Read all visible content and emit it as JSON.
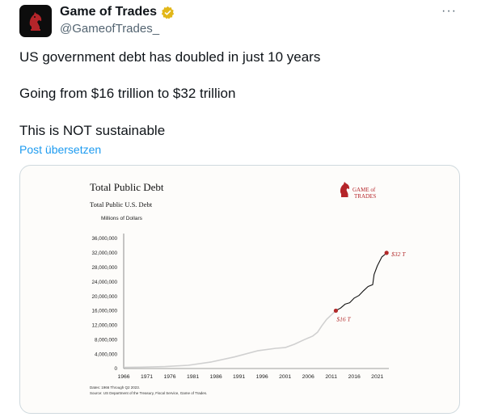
{
  "tweet": {
    "display_name": "Game of Trades",
    "handle": "@GameofTrades_",
    "lines": [
      "US government debt has doubled in just 10 years",
      "Going from $16 trillion to $32 trillion",
      "This is NOT sustainable"
    ],
    "translate_label": "Post übersetzen",
    "more_label": "···",
    "colors": {
      "accent": "#1d9bf0",
      "verified": "#e2b719",
      "text": "#0f1419",
      "muted": "#536471"
    },
    "icons": [
      "avatar-logo",
      "verified-badge-icon",
      "more-options-icon"
    ]
  },
  "chart": {
    "title": "Total Public Debt",
    "subtitle": "Total Public U.S. Debt",
    "ylabel": "Millions of Dollars",
    "logo_text": {
      "line1": "GAME of",
      "line2": "TRADES"
    },
    "footnote1": "Dates: 1966 Through Q2 2023.",
    "footnote2": "Source: US Department of the Treasury, Fiscal Service, Game of Trades.",
    "annotations": [
      {
        "label": "$16 T",
        "x": 2012,
        "y": 16000000
      },
      {
        "label": "$32 T",
        "x": 2023,
        "y": 32000000
      }
    ]
  },
  "chart_data": {
    "type": "line",
    "title": "Total Public Debt",
    "subtitle": "Total Public U.S. Debt",
    "xlabel": "",
    "ylabel": "Millions of Dollars",
    "xlim": [
      1966,
      2023.5
    ],
    "ylim": [
      0,
      36000000
    ],
    "x_ticks": [
      "1966",
      "1971",
      "1976",
      "1981",
      "1986",
      "1991",
      "1996",
      "2001",
      "2006",
      "2011",
      "2016",
      "2021"
    ],
    "y_ticks": [
      "0",
      "4,000,000",
      "8,000,000",
      "12,000,000",
      "16,000,000",
      "20,000,000",
      "24,000,000",
      "28,000,000",
      "32,000,000",
      "36,000,000"
    ],
    "grid": false,
    "series": [
      {
        "x": [
          1966,
          1970,
          1975,
          1980,
          1985,
          1990,
          1995,
          1999,
          2001,
          2003,
          2005,
          2007,
          2008,
          2009,
          2010,
          2011,
          2012
        ],
        "y": [
          320000,
          380000,
          530000,
          900000,
          1800000,
          3200000,
          4900000,
          5600000,
          5800000,
          6700000,
          7900000,
          9000000,
          10000000,
          11900000,
          13600000,
          14800000,
          16000000
        ],
        "color": "#d0d0d0"
      },
      {
        "x": [
          2012,
          2013,
          2014,
          2015,
          2016,
          2017,
          2018,
          2019,
          2020,
          2020.3,
          2021,
          2022,
          2022.5,
          2023
        ],
        "y": [
          16000000,
          16700000,
          17800000,
          18200000,
          19500000,
          20200000,
          21500000,
          22700000,
          23200000,
          26000000,
          28400000,
          30900000,
          31400000,
          32000000
        ],
        "color": "#111111"
      }
    ],
    "markers": [
      {
        "x": 2012,
        "y": 16000000,
        "label": "$16 T",
        "color": "#b22a2a"
      },
      {
        "x": 2023,
        "y": 32000000,
        "label": "$32 T",
        "color": "#b22a2a"
      }
    ]
  }
}
